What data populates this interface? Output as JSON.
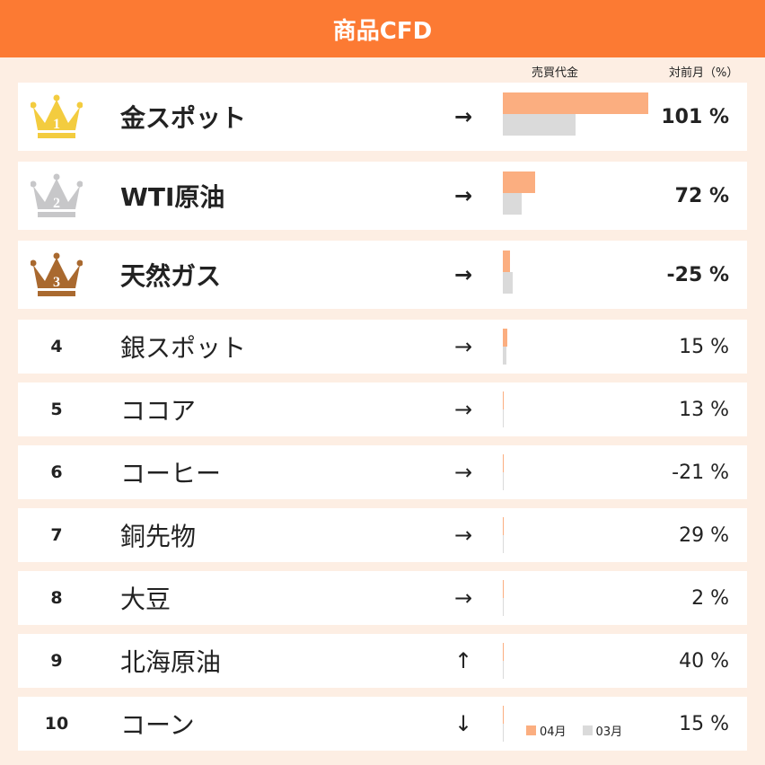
{
  "header": {
    "title": "商品CFD"
  },
  "columns": {
    "volume": "売買代金",
    "mom": "対前月（%）"
  },
  "legend": {
    "current": "04月",
    "previous": "03月"
  },
  "colors": {
    "header_bg": "#fc7a33",
    "bar_current": "#fbae80",
    "bar_previous": "#dadada",
    "gold": "#f3cc3f",
    "silver": "#c7c7c9",
    "bronze": "#a9692f"
  },
  "rows": [
    {
      "rank": "1",
      "name": "金スポット",
      "trend": "→",
      "trend_icon": "arrow-right-icon",
      "pct": "101 %",
      "volume_current": 1.0,
      "volume_previous": 0.5,
      "crown": "gold"
    },
    {
      "rank": "2",
      "name": "WTI原油",
      "trend": "→",
      "trend_icon": "arrow-right-icon",
      "pct": "72 %",
      "volume_current": 0.22,
      "volume_previous": 0.13,
      "crown": "silver"
    },
    {
      "rank": "3",
      "name": "天然ガス",
      "trend": "→",
      "trend_icon": "arrow-right-icon",
      "pct": "-25 %",
      "volume_current": 0.05,
      "volume_previous": 0.07,
      "crown": "bronze"
    },
    {
      "rank": "4",
      "name": "銀スポット",
      "trend": "→",
      "trend_icon": "arrow-right-icon",
      "pct": "15 %",
      "volume_current": 0.03,
      "volume_previous": 0.025
    },
    {
      "rank": "5",
      "name": "ココア",
      "trend": "→",
      "trend_icon": "arrow-right-icon",
      "pct": "13 %",
      "volume_current": 0.006,
      "volume_previous": 0.005
    },
    {
      "rank": "6",
      "name": "コーヒー",
      "trend": "→",
      "trend_icon": "arrow-right-icon",
      "pct": "-21 %",
      "volume_current": 0.005,
      "volume_previous": 0.006
    },
    {
      "rank": "7",
      "name": "銅先物",
      "trend": "→",
      "trend_icon": "arrow-right-icon",
      "pct": "29 %",
      "volume_current": 0.005,
      "volume_previous": 0.004
    },
    {
      "rank": "8",
      "name": "大豆",
      "trend": "→",
      "trend_icon": "arrow-right-icon",
      "pct": "2 %",
      "volume_current": 0.005,
      "volume_previous": 0.005
    },
    {
      "rank": "9",
      "name": "北海原油",
      "trend": "↑",
      "trend_icon": "arrow-up-icon",
      "pct": "40 %",
      "volume_current": 0.004,
      "volume_previous": 0.003
    },
    {
      "rank": "10",
      "name": "コーン",
      "trend": "↓",
      "trend_icon": "arrow-down-icon",
      "pct": "15 %",
      "volume_current": 0.003,
      "volume_previous": 0.003
    }
  ]
}
